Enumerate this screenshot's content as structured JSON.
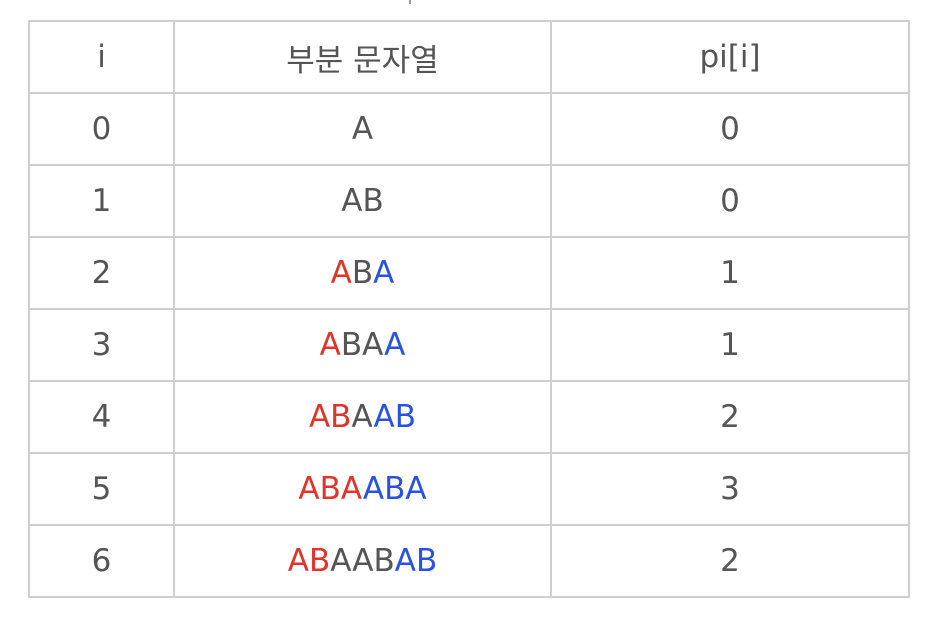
{
  "table": {
    "headers": {
      "index": "i",
      "substring": "부분 문자열",
      "pi": "pi[i]"
    },
    "colors": {
      "prefix_match": "#e0352b",
      "suffix_match": "#2a52e0",
      "text": "#555555",
      "border": "#cfcfcf"
    },
    "rows": [
      {
        "i": "0",
        "pi": "0",
        "segments": [
          {
            "text": "A",
            "color": "gray"
          }
        ]
      },
      {
        "i": "1",
        "pi": "0",
        "segments": [
          {
            "text": "AB",
            "color": "gray"
          }
        ]
      },
      {
        "i": "2",
        "pi": "1",
        "segments": [
          {
            "text": "A",
            "color": "red"
          },
          {
            "text": "B",
            "color": "gray"
          },
          {
            "text": "A",
            "color": "blue"
          }
        ]
      },
      {
        "i": "3",
        "pi": "1",
        "segments": [
          {
            "text": "A",
            "color": "red"
          },
          {
            "text": "BA",
            "color": "gray"
          },
          {
            "text": "A",
            "color": "blue"
          }
        ]
      },
      {
        "i": "4",
        "pi": "2",
        "segments": [
          {
            "text": "AB",
            "color": "red"
          },
          {
            "text": "A",
            "color": "gray"
          },
          {
            "text": "AB",
            "color": "blue"
          }
        ]
      },
      {
        "i": "5",
        "pi": "3",
        "segments": [
          {
            "text": "ABA",
            "color": "red"
          },
          {
            "text": "ABA",
            "color": "blue"
          }
        ]
      },
      {
        "i": "6",
        "pi": "2",
        "segments": [
          {
            "text": "AB",
            "color": "red"
          },
          {
            "text": "AAB",
            "color": "gray"
          },
          {
            "text": "AB",
            "color": "blue"
          }
        ]
      }
    ]
  }
}
